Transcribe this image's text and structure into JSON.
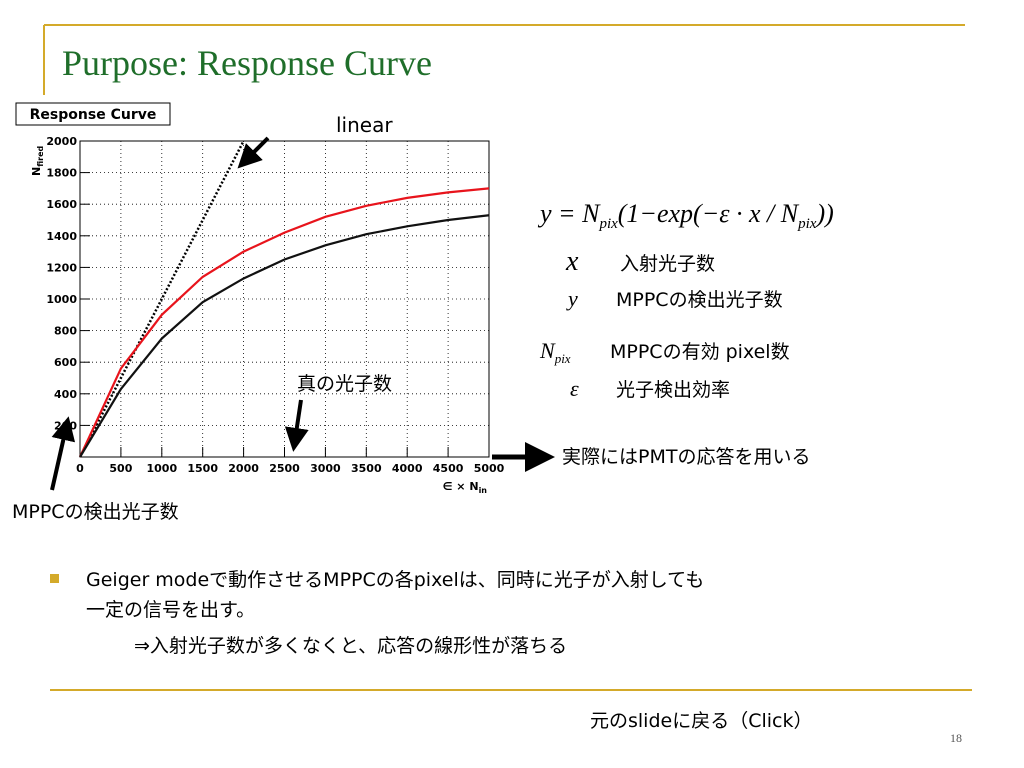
{
  "title": "Purpose: Response Curve",
  "annotations": {
    "linear": "linear",
    "true_photons": "真の光子数",
    "detected": "MPPCの検出光子数",
    "pmt_note": "実際にはPMTの応答を用いる"
  },
  "formula": [
    "y = N",
    "pix",
    "(1−exp(−ε · x / N",
    "pix",
    "))"
  ],
  "definitions": [
    {
      "symbol": "x",
      "sub": "",
      "text": "入射光子数"
    },
    {
      "symbol": "y",
      "sub": "",
      "text": "MPPCの検出光子数"
    },
    {
      "symbol": "N",
      "sub": "pix",
      "text": "MPPCの有効 pixel数"
    },
    {
      "symbol": "ε",
      "sub": "",
      "text": "光子検出効率"
    }
  ],
  "bullet": [
    "Geiger modeで動作させるMPPCの各pixelは、同時に光子が入射しても",
    "一定の信号を出す。",
    "⇒入射光子数が多くなくと、応答の線形性が落ちる"
  ],
  "footer": {
    "link": "元のslideに戻る（Click）",
    "page": "18"
  },
  "chart_data": {
    "type": "line",
    "title": "Response Curve",
    "xlabel": {
      "main": "∈ × N",
      "sub": "in"
    },
    "ylabel": {
      "main": "N",
      "sub": "fired"
    },
    "xlim": [
      0,
      5000
    ],
    "ylim": [
      0,
      2000
    ],
    "xticks": [
      0,
      500,
      1000,
      1500,
      2000,
      2500,
      3000,
      3500,
      4000,
      4500,
      5000
    ],
    "yticks": [
      200,
      400,
      600,
      800,
      1000,
      1200,
      1400,
      1600,
      1800,
      2000
    ],
    "grid": true,
    "series": [
      {
        "color": "#000000",
        "style": "dotted",
        "x": [
          0,
          2000
        ],
        "values": [
          0,
          2000
        ]
      },
      {
        "color": "#e8141c",
        "style": "solid",
        "x": [
          0,
          500,
          1000,
          1500,
          2000,
          2500,
          3000,
          3500,
          4000,
          4500,
          5000
        ],
        "values": [
          0,
          560,
          900,
          1140,
          1300,
          1420,
          1520,
          1590,
          1640,
          1675,
          1700
        ]
      },
      {
        "color": "#111111",
        "style": "solid",
        "x": [
          0,
          500,
          1000,
          1500,
          2000,
          2500,
          3000,
          3500,
          4000,
          4500,
          5000
        ],
        "values": [
          0,
          430,
          750,
          980,
          1130,
          1250,
          1340,
          1410,
          1460,
          1500,
          1530
        ]
      }
    ]
  }
}
